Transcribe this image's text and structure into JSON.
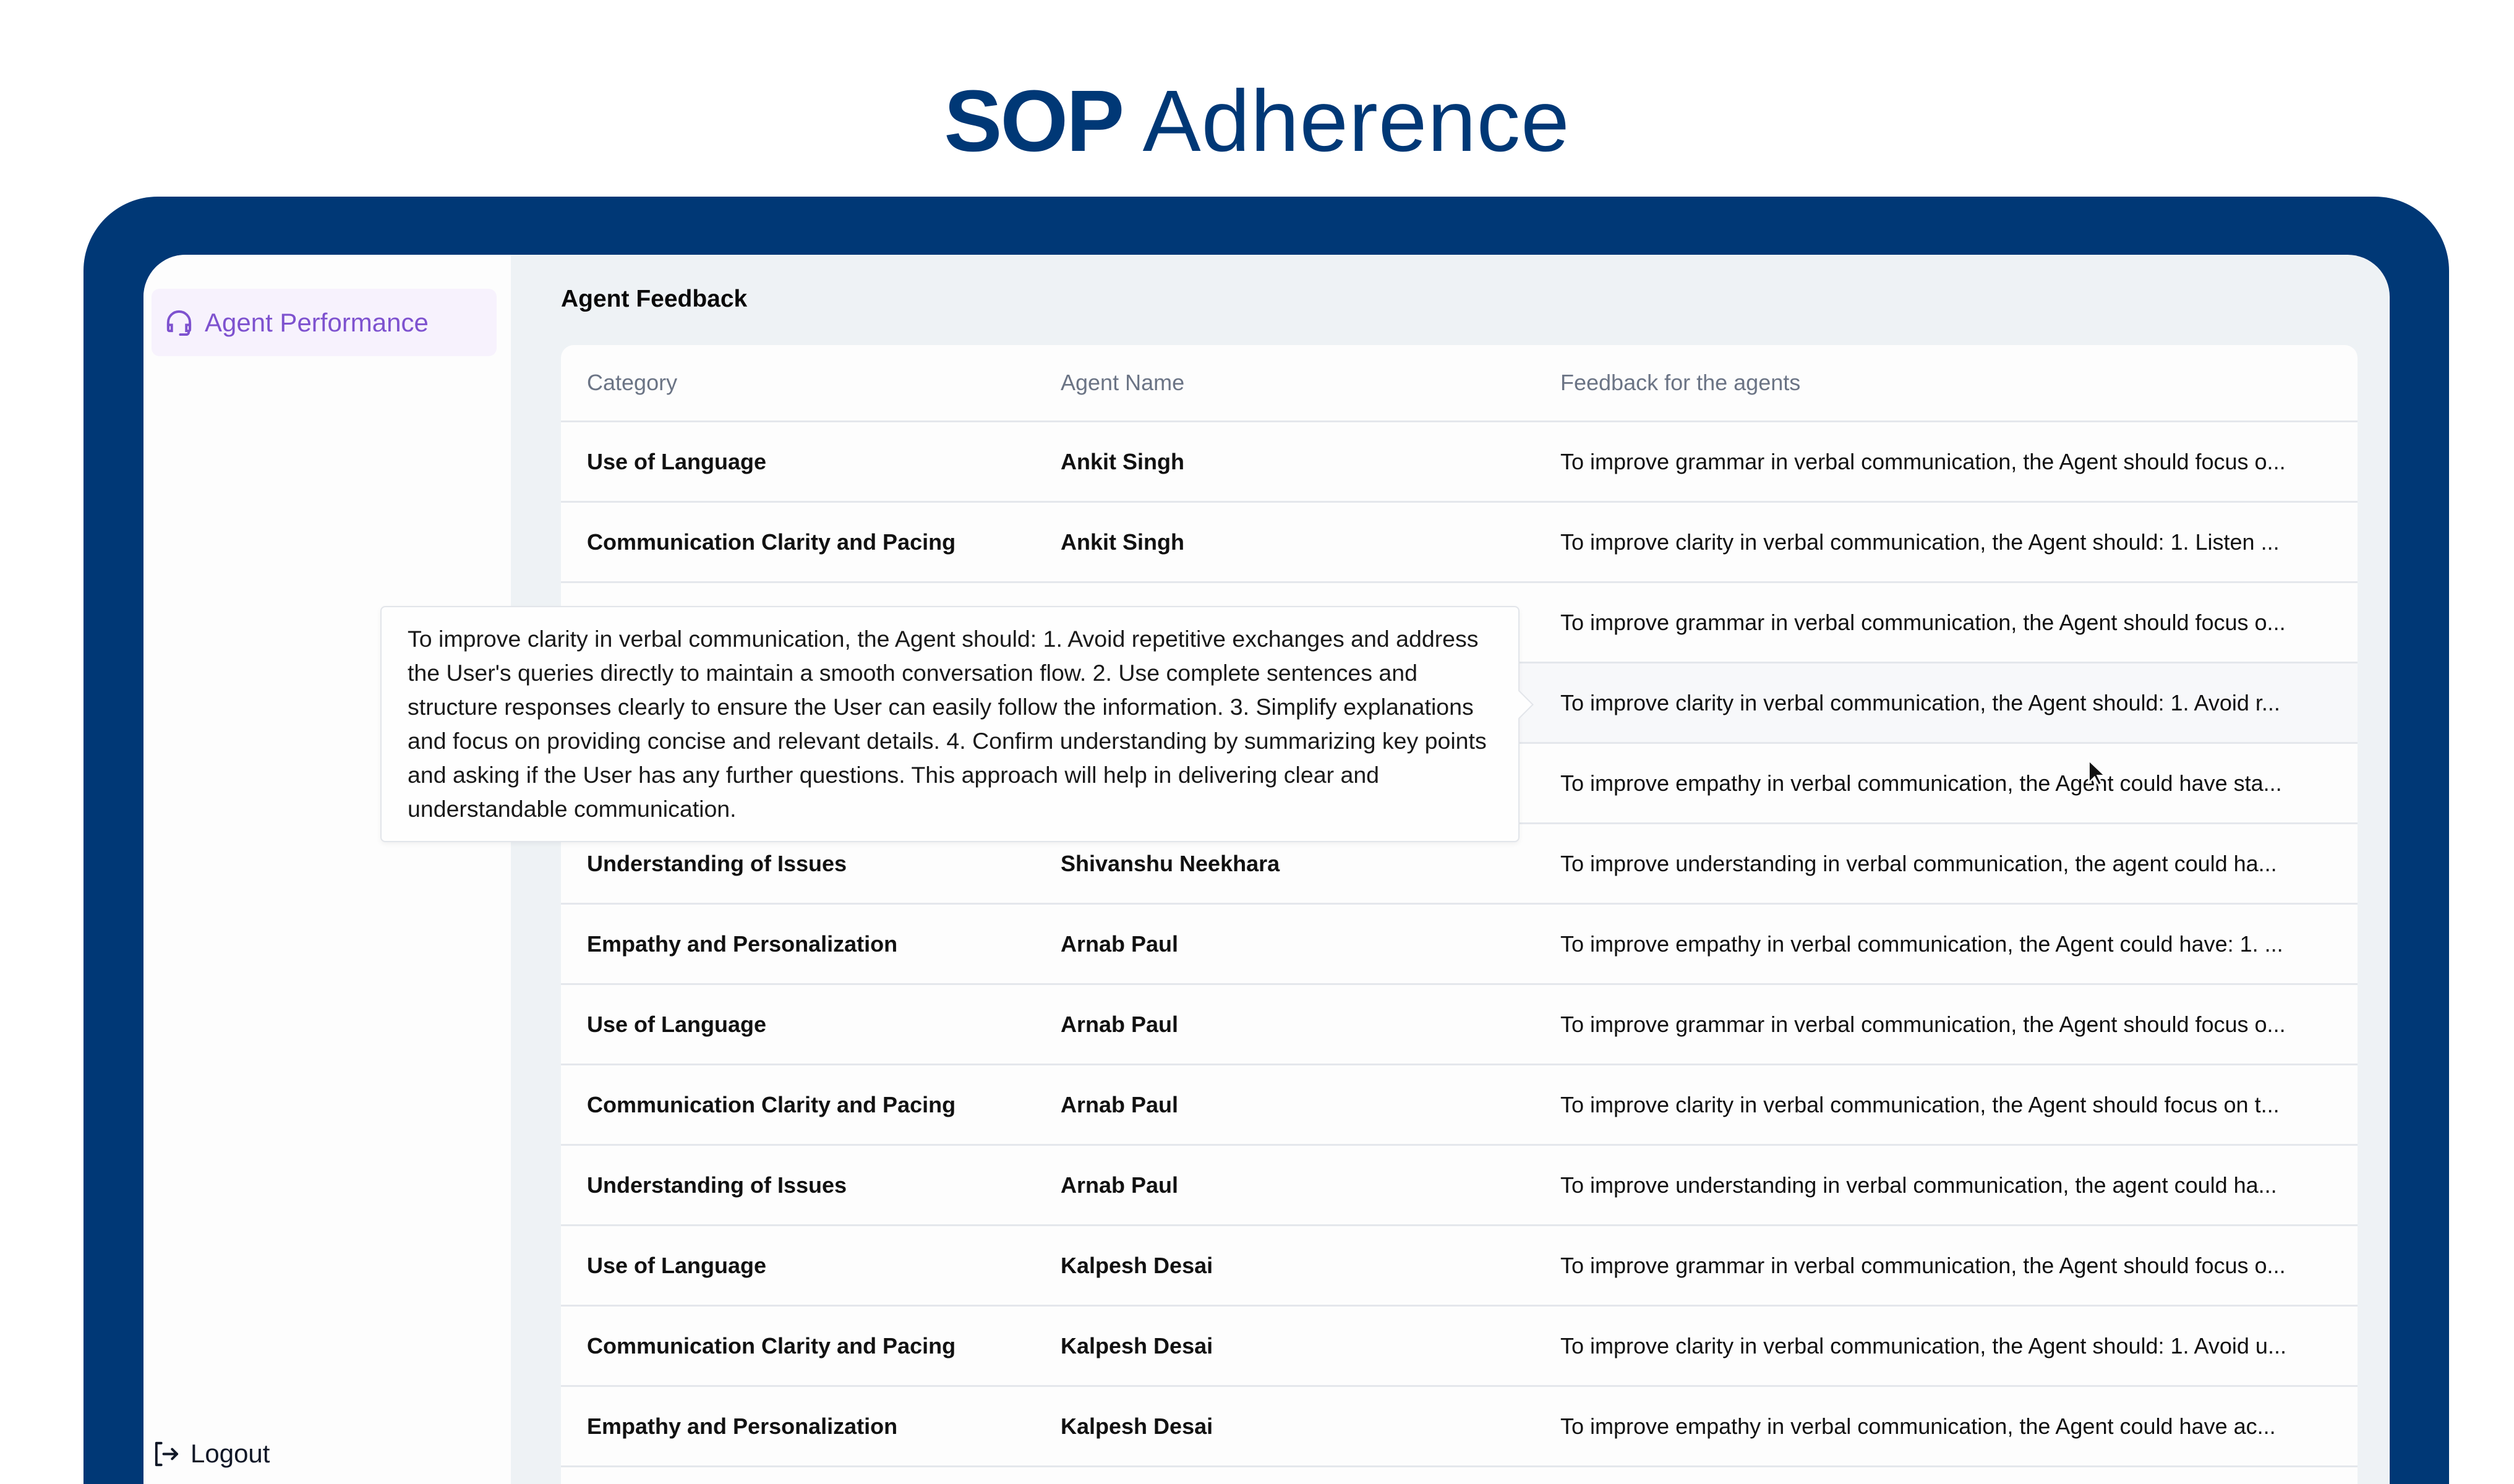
{
  "header": {
    "title_bold": "SOP",
    "title_regular": "Adherence"
  },
  "colors": {
    "brand": "#003876",
    "accent": "#7e52cf",
    "nav_active_bg": "#f7f2fd",
    "content_bg": "#eef2f5"
  },
  "sidebar": {
    "items": [
      {
        "label": "Agent Performance",
        "icon": "headset-icon",
        "active": true
      }
    ],
    "logout_label": "Logout",
    "logout_icon": "logout-icon"
  },
  "main": {
    "title": "Agent Feedback",
    "columns": [
      "Category",
      "Agent Name",
      "Feedback for the agents"
    ],
    "rows": [
      {
        "category": "Use of Language",
        "agent": "Ankit Singh",
        "feedback": "To improve grammar in verbal communication, the Agent should focus o..."
      },
      {
        "category": "Communication Clarity and Pacing",
        "agent": "Ankit Singh",
        "feedback": "To improve clarity in verbal communication, the Agent should: 1. Listen ..."
      },
      {
        "category": "",
        "agent": "",
        "feedback": "To improve grammar in verbal communication, the Agent should focus o..."
      },
      {
        "category": "",
        "agent": "",
        "feedback": "To improve clarity in verbal communication, the Agent should: 1. Avoid r..."
      },
      {
        "category": "",
        "agent": "",
        "feedback": "To improve empathy in verbal communication, the Agent could have sta..."
      },
      {
        "category": "Understanding of Issues",
        "agent": "Shivanshu Neekhara",
        "feedback": "To improve understanding in verbal communication, the agent could ha..."
      },
      {
        "category": "Empathy and Personalization",
        "agent": "Arnab Paul",
        "feedback": "To improve empathy in verbal communication, the Agent could have: 1. ..."
      },
      {
        "category": "Use of Language",
        "agent": "Arnab Paul",
        "feedback": "To improve grammar in verbal communication, the Agent should focus o..."
      },
      {
        "category": "Communication Clarity and Pacing",
        "agent": "Arnab Paul",
        "feedback": "To improve clarity in verbal communication, the Agent should focus on t..."
      },
      {
        "category": "Understanding of Issues",
        "agent": "Arnab Paul",
        "feedback": "To improve understanding in verbal communication, the agent could ha..."
      },
      {
        "category": "Use of Language",
        "agent": "Kalpesh Desai",
        "feedback": "To improve grammar in verbal communication, the Agent should focus o..."
      },
      {
        "category": "Communication Clarity and Pacing",
        "agent": "Kalpesh Desai",
        "feedback": "To improve clarity in verbal communication, the Agent should: 1. Avoid u..."
      },
      {
        "category": "Empathy and Personalization",
        "agent": "Kalpesh Desai",
        "feedback": "To improve empathy in verbal communication, the Agent could have ac..."
      }
    ],
    "hovered_row": 4,
    "tooltip": "To improve clarity in verbal communication, the Agent should: 1. Avoid repetitive exchanges and address the User's queries directly to maintain a smooth conversation flow. 2. Use complete sentences and structure responses clearly to ensure the User can easily follow the information. 3. Simplify explanations and focus on providing concise and relevant details. 4. Confirm understanding by summarizing key points and asking if the User has any further questions. This approach will help in delivering clear and understandable communication."
  }
}
